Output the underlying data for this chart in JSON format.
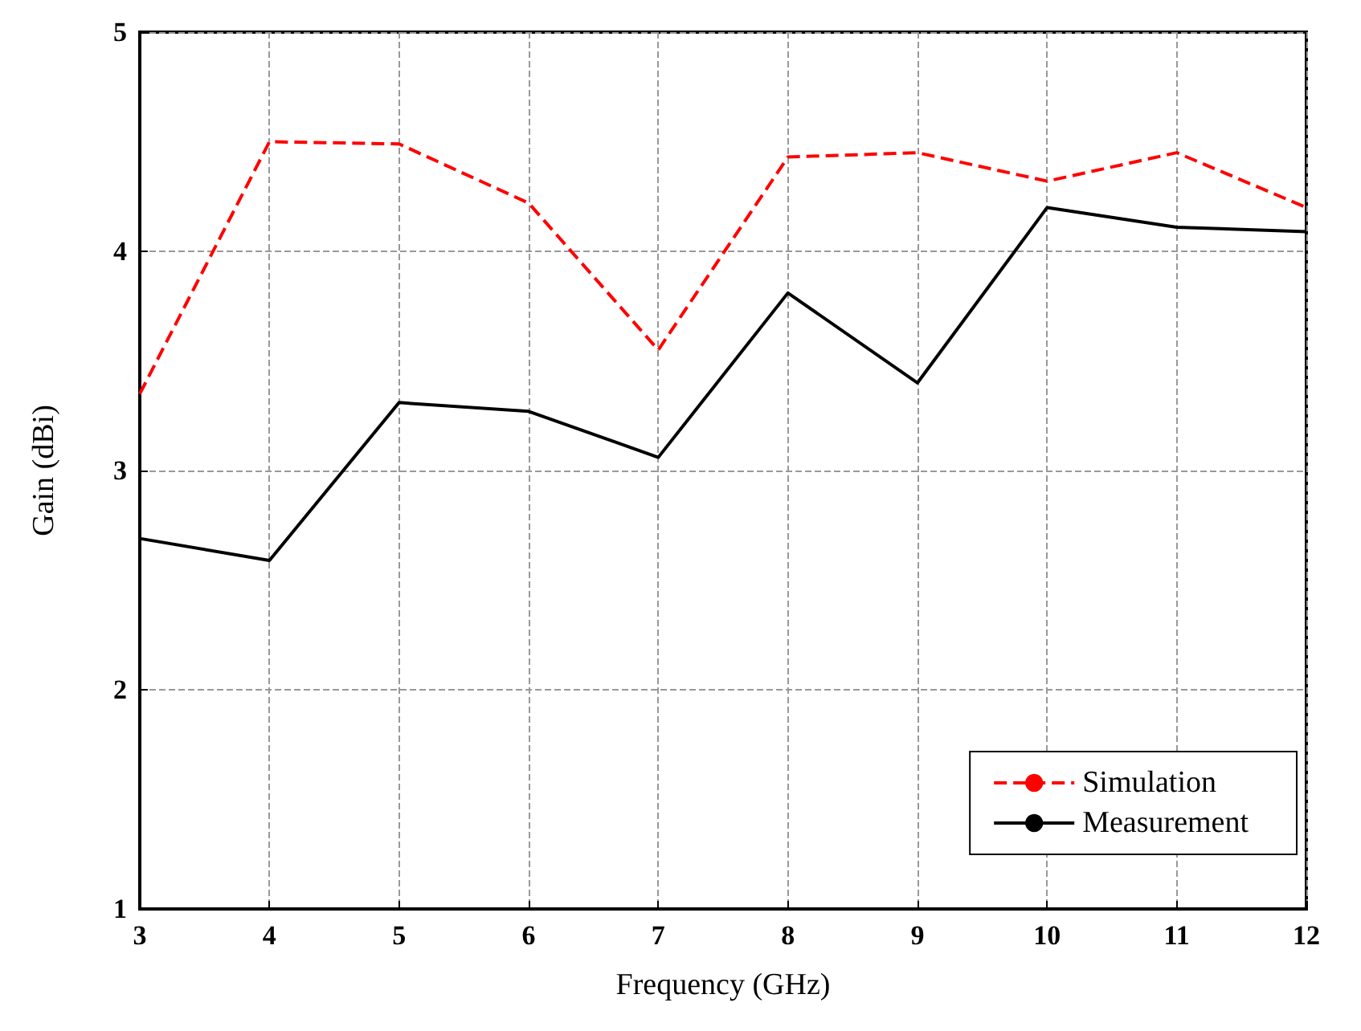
{
  "chart_data": {
    "type": "line",
    "xlabel": "Frequency (GHz)",
    "ylabel": "Gain (dBi)",
    "x": [
      3,
      4,
      5,
      6,
      7,
      8,
      9,
      10,
      11,
      12
    ],
    "series": [
      {
        "name": "Simulation",
        "color": "#ff0000",
        "line_style": "dashed",
        "values": [
          3.35,
          4.5,
          4.49,
          4.22,
          3.55,
          4.43,
          4.45,
          4.32,
          4.45,
          4.2
        ]
      },
      {
        "name": "Measurement",
        "color": "#000000",
        "line_style": "solid",
        "values": [
          2.69,
          2.59,
          3.31,
          3.27,
          3.06,
          3.81,
          3.4,
          4.2,
          4.11,
          4.09
        ]
      }
    ],
    "xlim": [
      3,
      12
    ],
    "xticks": [
      3,
      4,
      5,
      6,
      7,
      8,
      9,
      10,
      11,
      12
    ],
    "ylim": [
      1,
      5
    ],
    "yticks": [
      1,
      2,
      3,
      4,
      5
    ],
    "grid": true,
    "legend": "bottom right",
    "marker": "none"
  }
}
